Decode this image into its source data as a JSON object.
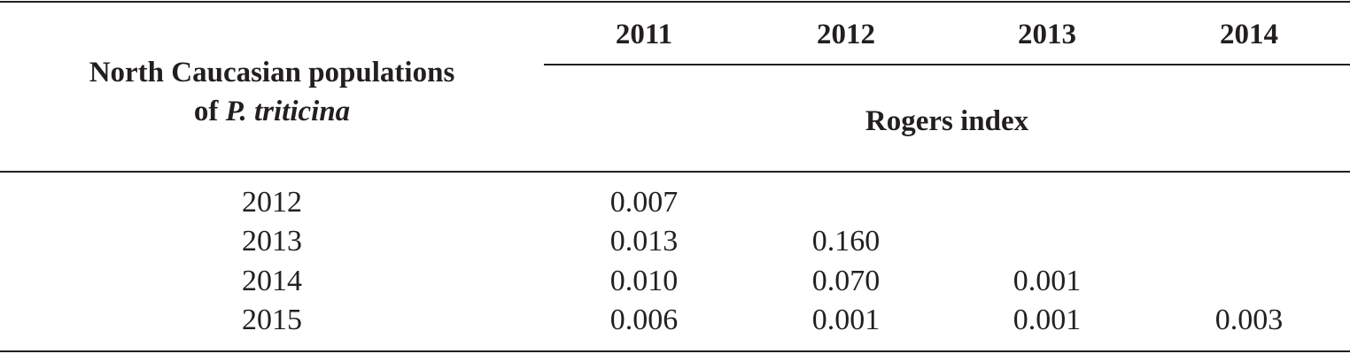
{
  "table": {
    "stub_header": {
      "line1": "North Caucasian populations",
      "line2_prefix": "of ",
      "line2_italic": "P. triticina"
    },
    "column_headers": [
      "2011",
      "2012",
      "2013",
      "2014"
    ],
    "spanner": "Rogers index",
    "rows": [
      {
        "label": "2012",
        "values": [
          "0.007",
          "",
          "",
          ""
        ]
      },
      {
        "label": "2013",
        "values": [
          "0.013",
          "0.160",
          "",
          ""
        ]
      },
      {
        "label": "2014",
        "values": [
          "0.010",
          "0.070",
          "0.001",
          ""
        ]
      },
      {
        "label": "2015",
        "values": [
          "0.006",
          "0.001",
          "0.001",
          "0.003"
        ]
      }
    ]
  }
}
